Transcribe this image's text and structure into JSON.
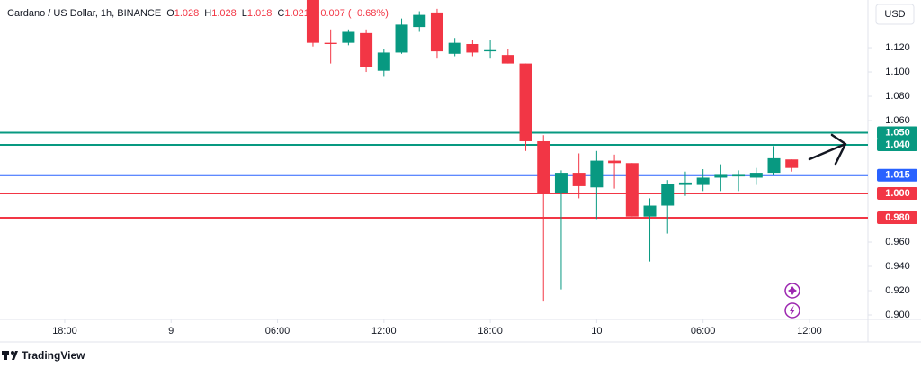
{
  "chart_data": {
    "type": "candlestick",
    "symbol": "Cardano / US Dollar, 1h, BINANCE",
    "ohlc_labels": [
      {
        "label": "O",
        "value": 1.028
      },
      {
        "label": "H",
        "value": 1.028
      },
      {
        "label": "L",
        "value": 1.018
      },
      {
        "label": "C",
        "value": 1.021
      }
    ],
    "change": "−0.007 (−0.68%)",
    "currency": "USD",
    "brand": "TradingView",
    "x": [
      14,
      15,
      16,
      17,
      18,
      19,
      20,
      21,
      22,
      23,
      24,
      25,
      26,
      27,
      28,
      29,
      30,
      31,
      32,
      33,
      34,
      35,
      36,
      37,
      38,
      39,
      40,
      41
    ],
    "open": [
      1.16,
      1.124,
      1.124,
      1.132,
      1.101,
      1.116,
      1.137,
      1.149,
      1.115,
      1.123,
      1.117,
      1.114,
      1.107,
      1.043,
      1.0,
      1.017,
      1.005,
      1.027,
      1.025,
      0.981,
      0.99,
      1.007,
      1.007,
      1.013,
      1.014,
      1.013,
      1.017,
      1.028
    ],
    "high": [
      1.162,
      1.135,
      1.135,
      1.135,
      1.119,
      1.144,
      1.15,
      1.152,
      1.128,
      1.126,
      1.126,
      1.119,
      1.107,
      1.048,
      1.019,
      1.033,
      1.035,
      1.032,
      1.025,
      0.996,
      1.011,
      1.018,
      1.02,
      1.024,
      1.019,
      1.021,
      1.039,
      1.028
    ],
    "low": [
      1.121,
      1.107,
      1.122,
      1.1,
      1.096,
      1.115,
      1.133,
      1.111,
      1.113,
      1.113,
      1.111,
      1.107,
      1.035,
      0.911,
      0.921,
      0.996,
      0.979,
      1.004,
      0.981,
      0.944,
      0.967,
      0.998,
      1.002,
      1.002,
      1.002,
      1.007,
      1.015,
      1.018
    ],
    "close": [
      1.124,
      1.123,
      1.133,
      1.104,
      1.116,
      1.139,
      1.147,
      1.117,
      1.124,
      1.116,
      1.118,
      1.107,
      1.043,
      1.0,
      1.017,
      1.006,
      1.027,
      1.025,
      0.981,
      0.99,
      1.008,
      1.009,
      1.013,
      1.016,
      1.016,
      1.017,
      1.029,
      1.021
    ],
    "up_color": "#089981",
    "down_color": "#f23645",
    "xlim": [
      -3.65,
      45.3
    ],
    "xticks": [
      {
        "value": 0,
        "label": "18:00"
      },
      {
        "value": 6,
        "label": "9"
      },
      {
        "value": 12,
        "label": "06:00"
      },
      {
        "value": 18,
        "label": "12:00"
      },
      {
        "value": 24,
        "label": "18:00"
      },
      {
        "value": 30,
        "label": "10"
      },
      {
        "value": 36,
        "label": "06:00"
      },
      {
        "value": 42,
        "label": "12:00"
      }
    ],
    "ylim": [
      0.8963,
      1.1593
    ],
    "yticks": [
      {
        "value": 0.9,
        "label": "0.900"
      },
      {
        "value": 0.92,
        "label": "0.920"
      },
      {
        "value": 0.94,
        "label": "0.940"
      },
      {
        "value": 0.96,
        "label": "0.960"
      },
      {
        "value": 1.06,
        "label": "1.060"
      },
      {
        "value": 1.08,
        "label": "1.080"
      },
      {
        "value": 1.1,
        "label": "1.100"
      },
      {
        "value": 1.12,
        "label": "1.120"
      }
    ],
    "grid": false,
    "levels": [
      {
        "value": 1.05,
        "label": "1.050",
        "color": "#089981"
      },
      {
        "value": 1.04,
        "label": "1.040",
        "color": "#089981"
      },
      {
        "value": 1.015,
        "label": "1.015",
        "color": "#2962ff"
      },
      {
        "value": 1.0,
        "label": "1.000",
        "color": "#f23645"
      },
      {
        "value": 0.98,
        "label": "0.980",
        "color": "#f23645"
      }
    ]
  }
}
